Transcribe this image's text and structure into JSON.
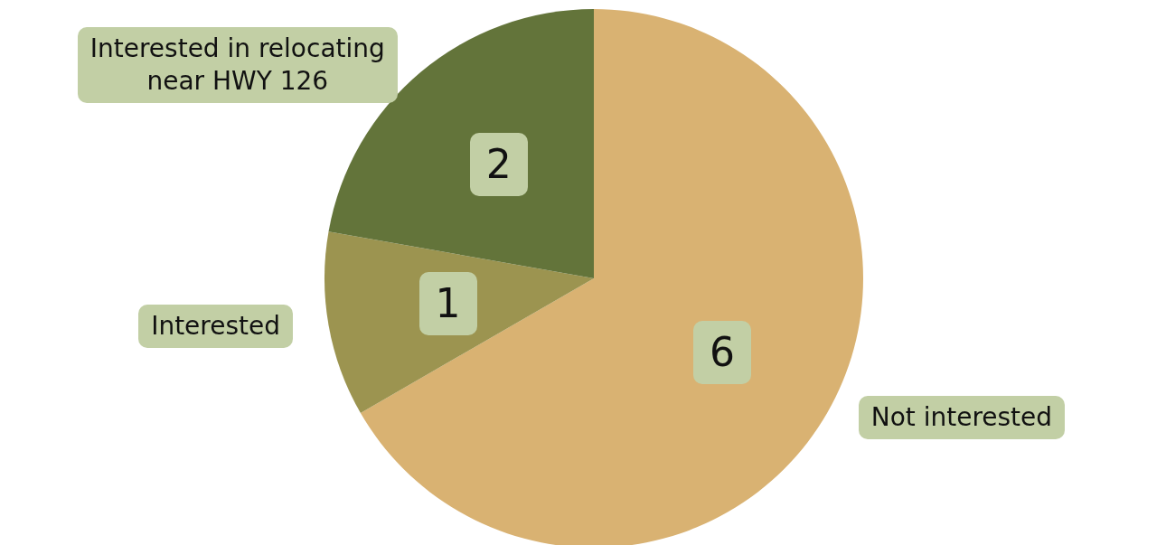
{
  "chart_data": {
    "type": "pie",
    "categories": [
      "Not interested",
      "Interested",
      "Interested in relocating\nnear HWY 126"
    ],
    "values": [
      6,
      1,
      2
    ],
    "colors": [
      "#d9b272",
      "#9c9450",
      "#63743a"
    ],
    "data_labels": true,
    "legend": false
  }
}
